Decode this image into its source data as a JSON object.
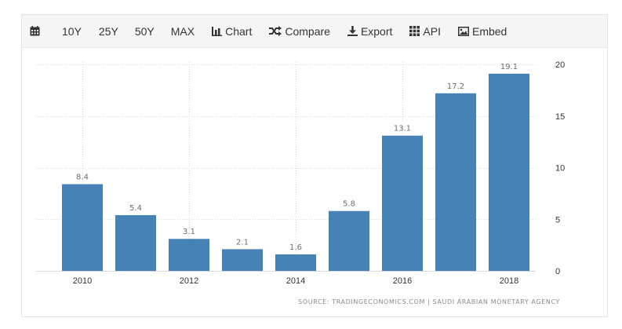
{
  "toolbar": {
    "items": [
      {
        "label": "",
        "icon": "calendar-icon"
      },
      {
        "label": "10Y"
      },
      {
        "label": "25Y"
      },
      {
        "label": "50Y"
      },
      {
        "label": "MAX"
      },
      {
        "label": "Chart",
        "icon": "bar-chart-icon"
      },
      {
        "label": "Compare",
        "icon": "shuffle-icon"
      },
      {
        "label": "Export",
        "icon": "download-icon"
      },
      {
        "label": "API",
        "icon": "grid-icon"
      },
      {
        "label": "Embed",
        "icon": "image-icon"
      }
    ]
  },
  "colors": {
    "bar": "#4682b4",
    "grid": "#d9d9d9",
    "toolbar_bg": "#f5f5f5",
    "text": "#333333",
    "label": "#6d6d6d"
  },
  "chart_data": {
    "type": "bar",
    "categories": [
      "2010",
      "2011",
      "2012",
      "2013",
      "2014",
      "2015",
      "2016",
      "2017",
      "2018"
    ],
    "values": [
      8.4,
      5.4,
      3.1,
      2.1,
      1.6,
      5.8,
      13.1,
      17.2,
      19.1
    ],
    "x_tick_labels": [
      "2010",
      "2012",
      "2014",
      "2016",
      "2018"
    ],
    "ylim": [
      0,
      20
    ],
    "y_ticks": [
      0,
      5,
      10,
      15,
      20
    ],
    "y_axis_side": "right",
    "grid": true,
    "data_labels": true,
    "title": "",
    "xlabel": "",
    "ylabel": ""
  },
  "source_text": "SOURCE: TRADINGECONOMICS.COM | SAUDI ARABIAN MONETARY AGENCY"
}
